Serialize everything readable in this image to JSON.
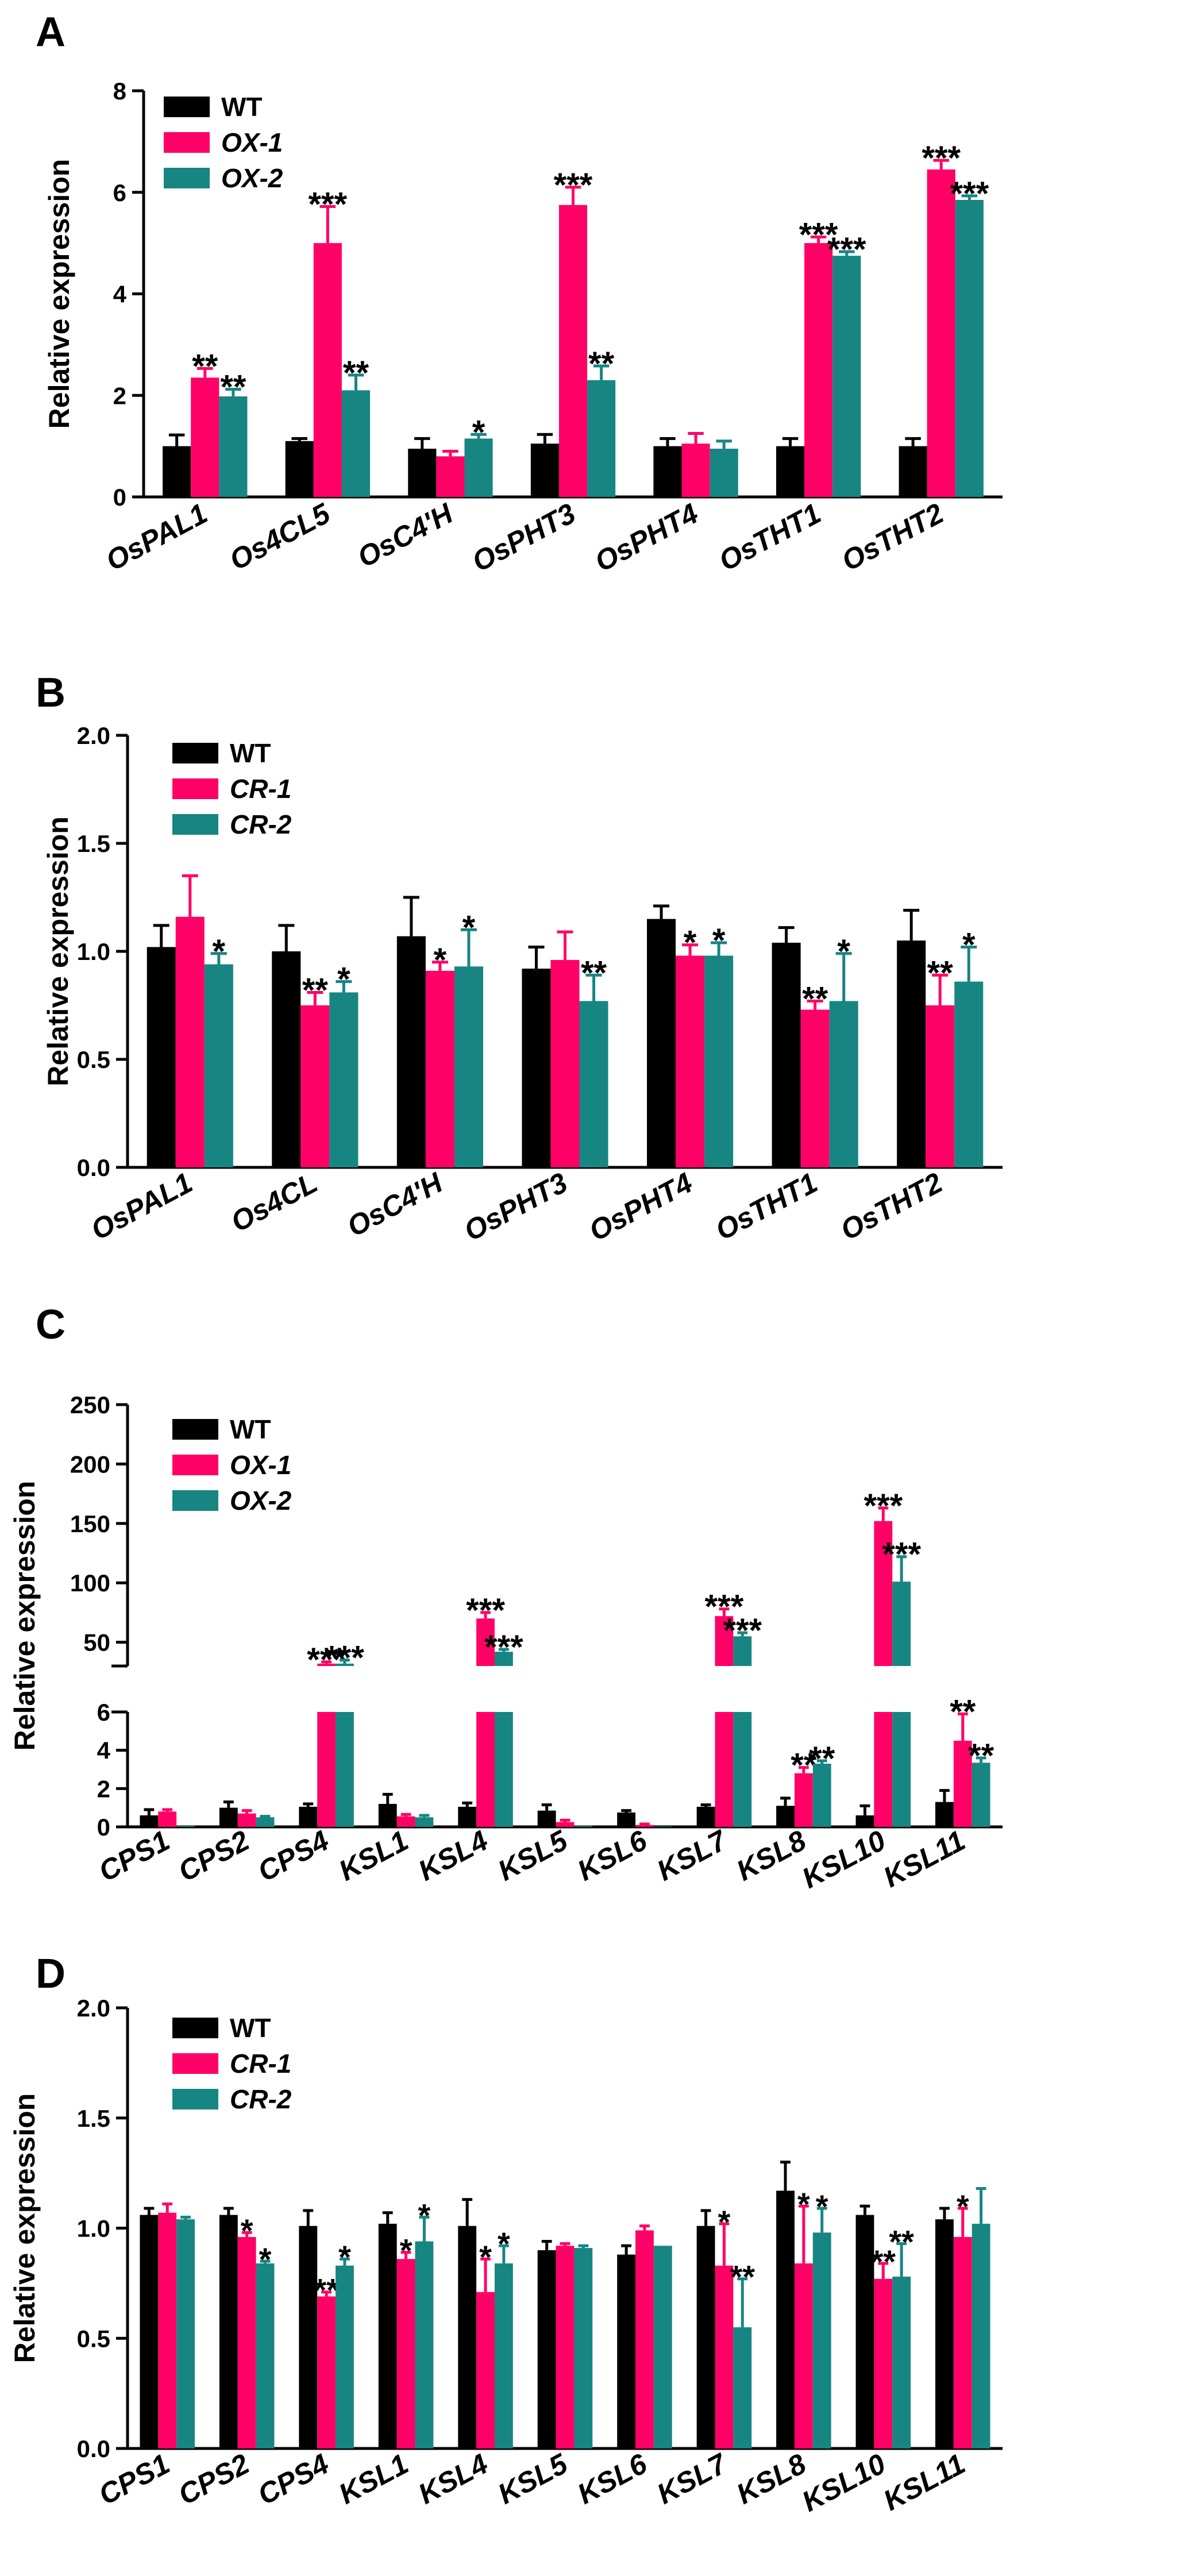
{
  "colors": {
    "wt": "#000000",
    "s1": "#ff0066",
    "s2": "#178582"
  },
  "chart_data": [
    {
      "panel": "A",
      "type": "bar",
      "ylabel": "Relative expression",
      "ylim": [
        0,
        8
      ],
      "yticks": [
        0,
        2,
        4,
        6,
        8
      ],
      "categories": [
        "OsPAL1",
        "Os4CL5",
        "OsC4'H",
        "OsPHT3",
        "OsPHT4",
        "OsTHT1",
        "OsTHT2"
      ],
      "legend": [
        "WT",
        "OX-1",
        "OX-2"
      ],
      "series": [
        {
          "name": "WT",
          "values": [
            1.0,
            1.1,
            0.95,
            1.05,
            1.0,
            1.0,
            1.0
          ],
          "errors": [
            0.22,
            0.05,
            0.2,
            0.18,
            0.15,
            0.15,
            0.15
          ]
        },
        {
          "name": "OX-1",
          "values": [
            2.35,
            5.0,
            0.8,
            5.75,
            1.05,
            5.0,
            6.45
          ],
          "errors": [
            0.18,
            0.72,
            0.1,
            0.35,
            0.2,
            0.12,
            0.18
          ]
        },
        {
          "name": "OX-2",
          "values": [
            1.98,
            2.1,
            1.15,
            2.3,
            0.95,
            4.75,
            5.85
          ],
          "errors": [
            0.14,
            0.3,
            0.08,
            0.28,
            0.15,
            0.08,
            0.08
          ]
        }
      ],
      "annotations": [
        [
          "",
          "**",
          "**"
        ],
        [
          "",
          "***",
          "**"
        ],
        [
          "",
          "",
          "*"
        ],
        [
          "",
          "***",
          "**"
        ],
        [
          "",
          "",
          ""
        ],
        [
          "",
          "***",
          "***"
        ],
        [
          "",
          "***",
          "***"
        ]
      ]
    },
    {
      "panel": "B",
      "type": "bar",
      "ylabel": "Relative expression",
      "ylim": [
        0,
        2
      ],
      "yticks": [
        "0.0",
        "0.5",
        "1.0",
        "1.5",
        "2.0"
      ],
      "categories": [
        "OsPAL1",
        "Os4CL",
        "OsC4'H",
        "OsPHT3",
        "OsPHT4",
        "OsTHT1",
        "OsTHT2"
      ],
      "legend": [
        "WT",
        "CR-1",
        "CR-2"
      ],
      "series": [
        {
          "name": "WT",
          "values": [
            1.02,
            1.0,
            1.07,
            0.92,
            1.15,
            1.04,
            1.05
          ],
          "errors": [
            0.1,
            0.12,
            0.18,
            0.1,
            0.06,
            0.07,
            0.14
          ]
        },
        {
          "name": "CR-1",
          "values": [
            1.16,
            0.75,
            0.91,
            0.96,
            0.98,
            0.73,
            0.75
          ],
          "errors": [
            0.19,
            0.06,
            0.04,
            0.13,
            0.05,
            0.04,
            0.14
          ]
        },
        {
          "name": "CR-2",
          "values": [
            0.94,
            0.81,
            0.93,
            0.77,
            0.98,
            0.77,
            0.86
          ],
          "errors": [
            0.05,
            0.05,
            0.17,
            0.12,
            0.06,
            0.22,
            0.16
          ]
        }
      ],
      "annotations": [
        [
          "",
          "",
          "*"
        ],
        [
          "",
          "**",
          "*"
        ],
        [
          "",
          "*",
          "*"
        ],
        [
          "",
          "",
          "**"
        ],
        [
          "",
          "*",
          "*"
        ],
        [
          "",
          "**",
          "*"
        ],
        [
          "",
          "**",
          "*"
        ]
      ]
    },
    {
      "panel": "C",
      "type": "bar",
      "broken_axis": true,
      "ylabel": "Relative expression",
      "ylim_lower": [
        0,
        6
      ],
      "ylim_upper": [
        30,
        250
      ],
      "yticks_lower": [
        0,
        2,
        4,
        6
      ],
      "yticks_upper": [
        50,
        100,
        150,
        200,
        250
      ],
      "categories": [
        "CPS1",
        "CPS2",
        "CPS4",
        "KSL1",
        "KSL4",
        "KSL5",
        "KSL6",
        "KSL7",
        "KSL8",
        "KSL10",
        "KSL11"
      ],
      "legend": [
        "WT",
        "OX-1",
        "OX-2"
      ],
      "series": [
        {
          "name": "WT",
          "values": [
            0.6,
            1.0,
            1.05,
            1.2,
            1.05,
            0.85,
            0.75,
            1.05,
            1.1,
            0.6,
            1.3
          ],
          "errors": [
            0.3,
            0.3,
            0.15,
            0.5,
            0.2,
            0.3,
            0.1,
            0.1,
            0.4,
            0.5,
            0.6
          ]
        },
        {
          "name": "OX-1",
          "values": [
            0.8,
            0.7,
            32,
            0.55,
            70,
            0.25,
            0.1,
            72,
            2.8,
            152,
            4.5
          ],
          "errors": [
            0.1,
            0.15,
            1.5,
            0.1,
            5,
            0.1,
            0.05,
            6,
            0.3,
            11,
            1.4
          ]
        },
        {
          "name": "OX-2",
          "values": [
            0.05,
            0.5,
            32,
            0.5,
            42,
            0.05,
            0.02,
            55,
            3.3,
            101,
            3.35
          ],
          "errors": [
            0.0,
            0.05,
            3,
            0.1,
            2,
            0.0,
            0.0,
            3,
            0.15,
            21,
            0.25
          ]
        }
      ],
      "annotations": [
        [
          "",
          "",
          ""
        ],
        [
          "",
          "",
          ""
        ],
        [
          "",
          "***",
          "***"
        ],
        [
          "",
          "",
          ""
        ],
        [
          "",
          "***",
          "***"
        ],
        [
          "",
          "",
          ""
        ],
        [
          "",
          "",
          ""
        ],
        [
          "",
          "***",
          "***"
        ],
        [
          "",
          "**",
          "**"
        ],
        [
          "",
          "***",
          "***"
        ],
        [
          "",
          "**",
          "**"
        ]
      ]
    },
    {
      "panel": "D",
      "type": "bar",
      "ylabel": "Relative expression",
      "ylim": [
        0,
        2
      ],
      "yticks": [
        "0.0",
        "0.5",
        "1.0",
        "1.5",
        "2.0"
      ],
      "categories": [
        "CPS1",
        "CPS2",
        "CPS4",
        "KSL1",
        "KSL4",
        "KSL5",
        "KSL6",
        "KSL7",
        "KSL8",
        "KSL10",
        "KSL11"
      ],
      "legend": [
        "WT",
        "CR-1",
        "CR-2"
      ],
      "series": [
        {
          "name": "WT",
          "values": [
            1.06,
            1.06,
            1.01,
            1.02,
            1.01,
            0.9,
            0.88,
            1.01,
            1.17,
            1.06,
            1.04
          ],
          "errors": [
            0.03,
            0.03,
            0.07,
            0.05,
            0.12,
            0.04,
            0.04,
            0.07,
            0.13,
            0.04,
            0.05
          ]
        },
        {
          "name": "CR-1",
          "values": [
            1.07,
            0.96,
            0.69,
            0.86,
            0.71,
            0.92,
            0.99,
            0.83,
            0.84,
            0.77,
            0.96
          ],
          "errors": [
            0.04,
            0.02,
            0.02,
            0.03,
            0.15,
            0.01,
            0.02,
            0.19,
            0.26,
            0.07,
            0.13
          ]
        },
        {
          "name": "CR-2",
          "values": [
            1.04,
            0.84,
            0.83,
            0.94,
            0.84,
            0.91,
            0.92,
            0.55,
            0.98,
            0.78,
            1.02
          ],
          "errors": [
            0.01,
            0.01,
            0.03,
            0.11,
            0.08,
            0.01,
            0.0,
            0.22,
            0.11,
            0.15,
            0.16
          ]
        }
      ],
      "annotations": [
        [
          "",
          "",
          ""
        ],
        [
          "",
          "*",
          "*"
        ],
        [
          "",
          "**",
          "*"
        ],
        [
          "",
          "*",
          "*"
        ],
        [
          "",
          "*",
          "*"
        ],
        [
          "",
          "",
          ""
        ],
        [
          "",
          "",
          ""
        ],
        [
          "",
          "*",
          "**"
        ],
        [
          "",
          "*",
          "*"
        ],
        [
          "",
          "**",
          "**"
        ],
        [
          "",
          "*",
          ""
        ]
      ]
    }
  ]
}
